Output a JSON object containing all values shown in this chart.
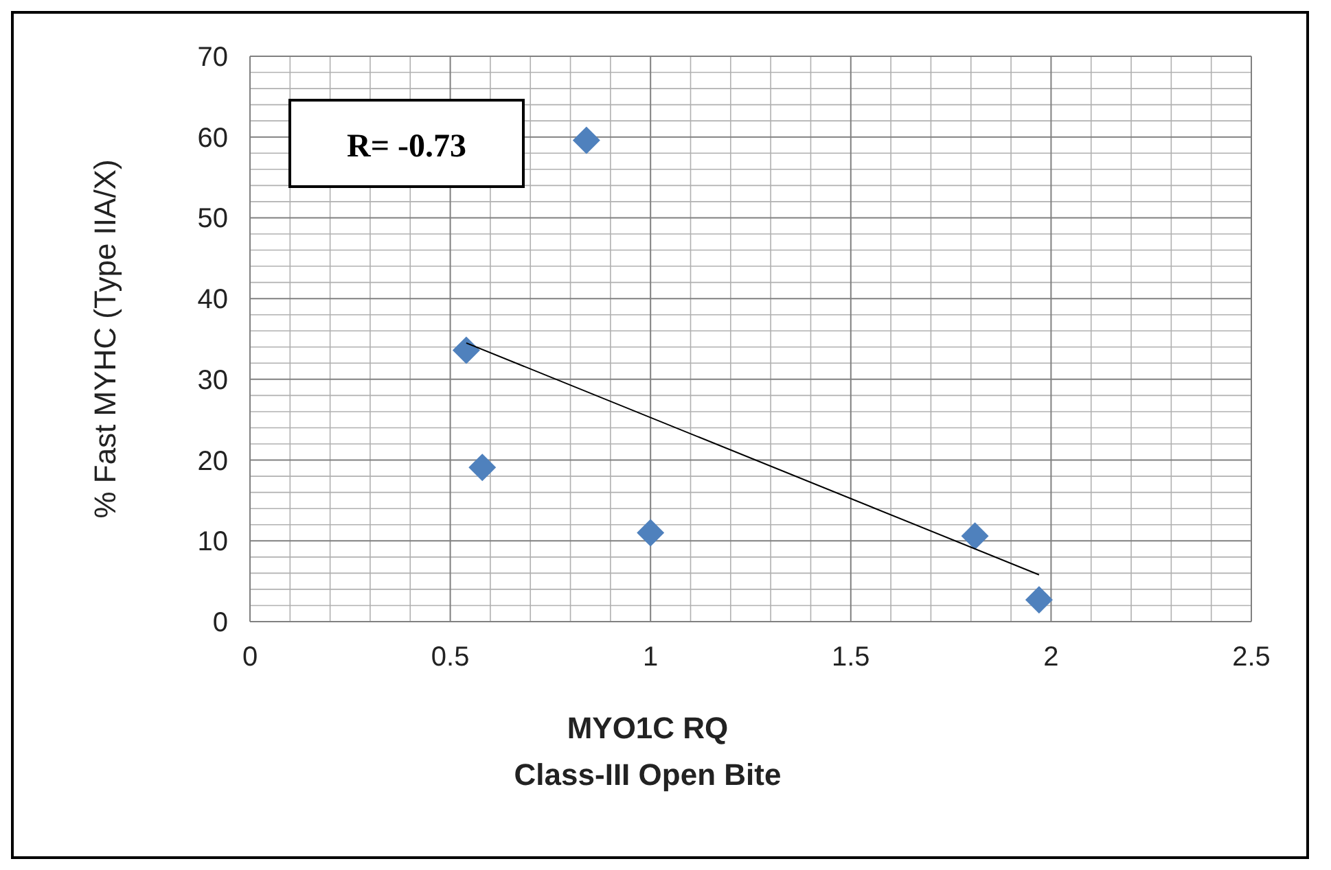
{
  "chart_data": {
    "type": "scatter",
    "xlabel": "MYO1C RQ\nClass-III Open Bite",
    "ylabel": "% Fast MYHC (Type IIA/X)",
    "xlim": [
      0,
      2.5
    ],
    "ylim": [
      0,
      70
    ],
    "xticks": [
      0,
      0.5,
      1,
      1.5,
      2,
      2.5
    ],
    "yticks": [
      0,
      10,
      20,
      30,
      40,
      50,
      60,
      70
    ],
    "grid": true,
    "marker": "diamond",
    "annotations": [
      "R= -0.73"
    ],
    "series": [
      {
        "color": "#4f81bd",
        "x": [
          0.84,
          0.54,
          0.58,
          1.0,
          1.81,
          1.97
        ],
        "values": [
          59.6,
          33.6,
          19.1,
          11.0,
          10.6,
          2.7
        ]
      },
      {
        "type": "line",
        "color": "#000000",
        "marker": "none",
        "line_style": "solid",
        "x": [
          0.54,
          1.97
        ],
        "values": [
          34.5,
          5.8
        ]
      }
    ]
  }
}
